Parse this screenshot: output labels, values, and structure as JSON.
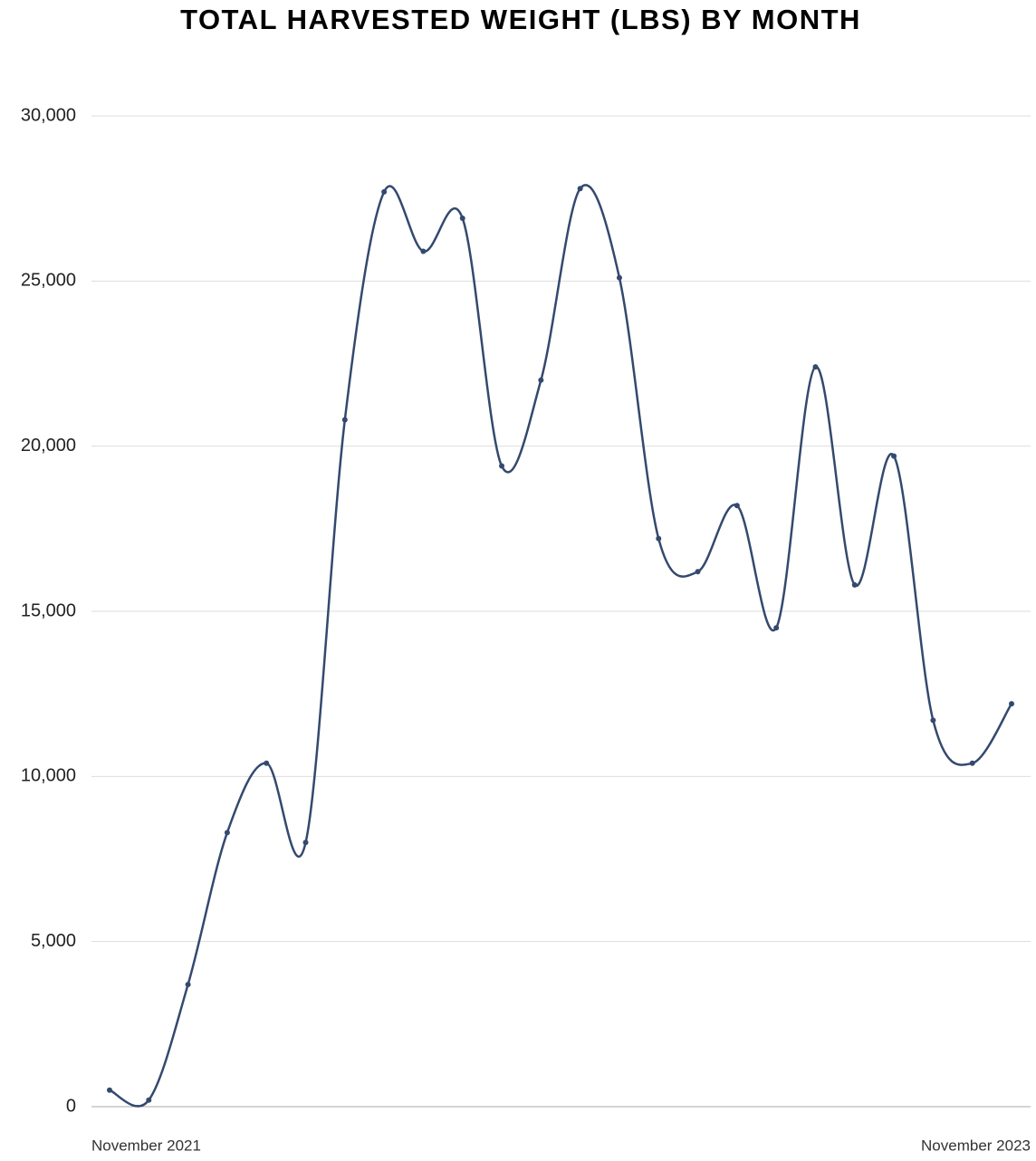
{
  "chart_data": {
    "type": "line",
    "title": "TOTAL HARVESTED WEIGHT (LBS) BY MONTH",
    "categories": [
      "November 2021",
      null,
      null,
      null,
      null,
      null,
      null,
      null,
      null,
      null,
      null,
      null,
      null,
      null,
      null,
      null,
      null,
      null,
      null,
      null,
      null,
      null,
      null,
      "November 2023"
    ],
    "values": [
      500,
      200,
      3700,
      8300,
      10400,
      8000,
      20800,
      27700,
      25900,
      26900,
      19400,
      22000,
      27800,
      25100,
      17200,
      16200,
      18200,
      14500,
      22400,
      15800,
      19700,
      11700,
      10400,
      12200
    ],
    "color": "#34496e",
    "ylim": [
      0,
      30000
    ],
    "yticks": [
      0,
      {
        "value": 5000,
        "label": "5,000"
      },
      {
        "value": 10000,
        "label": "10,000"
      },
      {
        "value": 15000,
        "label": "15,000"
      },
      {
        "value": 20000,
        "label": "20,000"
      },
      {
        "value": 25000,
        "label": "25,000"
      },
      {
        "value": 30000,
        "label": "30,000"
      }
    ],
    "grid": true
  }
}
